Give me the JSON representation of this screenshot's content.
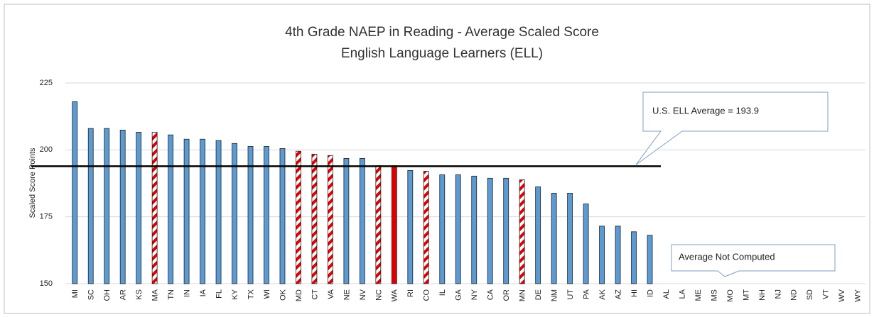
{
  "chart_data": {
    "type": "bar",
    "title": "4th Grade NAEP in Reading - Average Scaled Score",
    "subtitle": "English Language Learners (ELL)",
    "y_label": "Scaled Score Points",
    "categories": [
      "MI",
      "SC",
      "OH",
      "AR",
      "KS",
      "MA",
      "TN",
      "IN",
      "IA",
      "FL",
      "KY",
      "TX",
      "WI",
      "OK",
      "MD",
      "CT",
      "VA",
      "NE",
      "NV",
      "NC",
      "WA",
      "RI",
      "CO",
      "IL",
      "GA",
      "NY",
      "CA",
      "OR",
      "MN",
      "DE",
      "NM",
      "UT",
      "PA",
      "AK",
      "AZ",
      "HI",
      "ID",
      "AL",
      "LA",
      "ME",
      "MS",
      "MO",
      "MT",
      "NH",
      "NJ",
      "ND",
      "SD",
      "VT",
      "WV",
      "WY"
    ],
    "values": [
      218,
      208,
      208,
      207.4,
      206.6,
      206.6,
      205.6,
      204,
      204,
      203.5,
      202.4,
      201.3,
      201.3,
      200.5,
      199.5,
      198.4,
      197.9,
      196.8,
      196.8,
      194.1,
      194.1,
      192.3,
      192,
      190.7,
      190.7,
      190.2,
      189.4,
      189.4,
      188.8,
      186.2,
      183.8,
      183.8,
      179.8,
      171.5,
      171.5,
      169.4,
      168.1,
      null,
      null,
      null,
      null,
      null,
      null,
      null,
      null,
      null,
      null,
      null,
      null,
      null
    ],
    "patterns": [
      "solid",
      "solid",
      "solid",
      "solid",
      "solid",
      "hatch",
      "solid",
      "solid",
      "solid",
      "solid",
      "solid",
      "solid",
      "solid",
      "solid",
      "hatch",
      "hatch",
      "hatch",
      "solid",
      "solid",
      "hatch",
      "solid",
      "solid",
      "hatch",
      "solid",
      "solid",
      "solid",
      "solid",
      "solid",
      "hatch",
      "solid",
      "solid",
      "solid",
      "solid",
      "solid",
      "solid",
      "solid",
      "solid",
      "solid",
      "solid",
      "solid",
      "solid",
      "solid",
      "solid",
      "solid",
      "solid",
      "solid",
      "solid",
      "solid",
      "solid",
      "solid"
    ],
    "color": "#5b9bd5",
    "highlight_color": "#e00000",
    "highlight": [
      "WA"
    ],
    "ylim": [
      150,
      225
    ],
    "yticks": [
      150,
      175,
      200,
      225
    ],
    "grid": true,
    "reference_line": {
      "value": 193.9,
      "label": "U.S. ELL Average = 193.9"
    },
    "annotation": "Average Not Computed"
  }
}
